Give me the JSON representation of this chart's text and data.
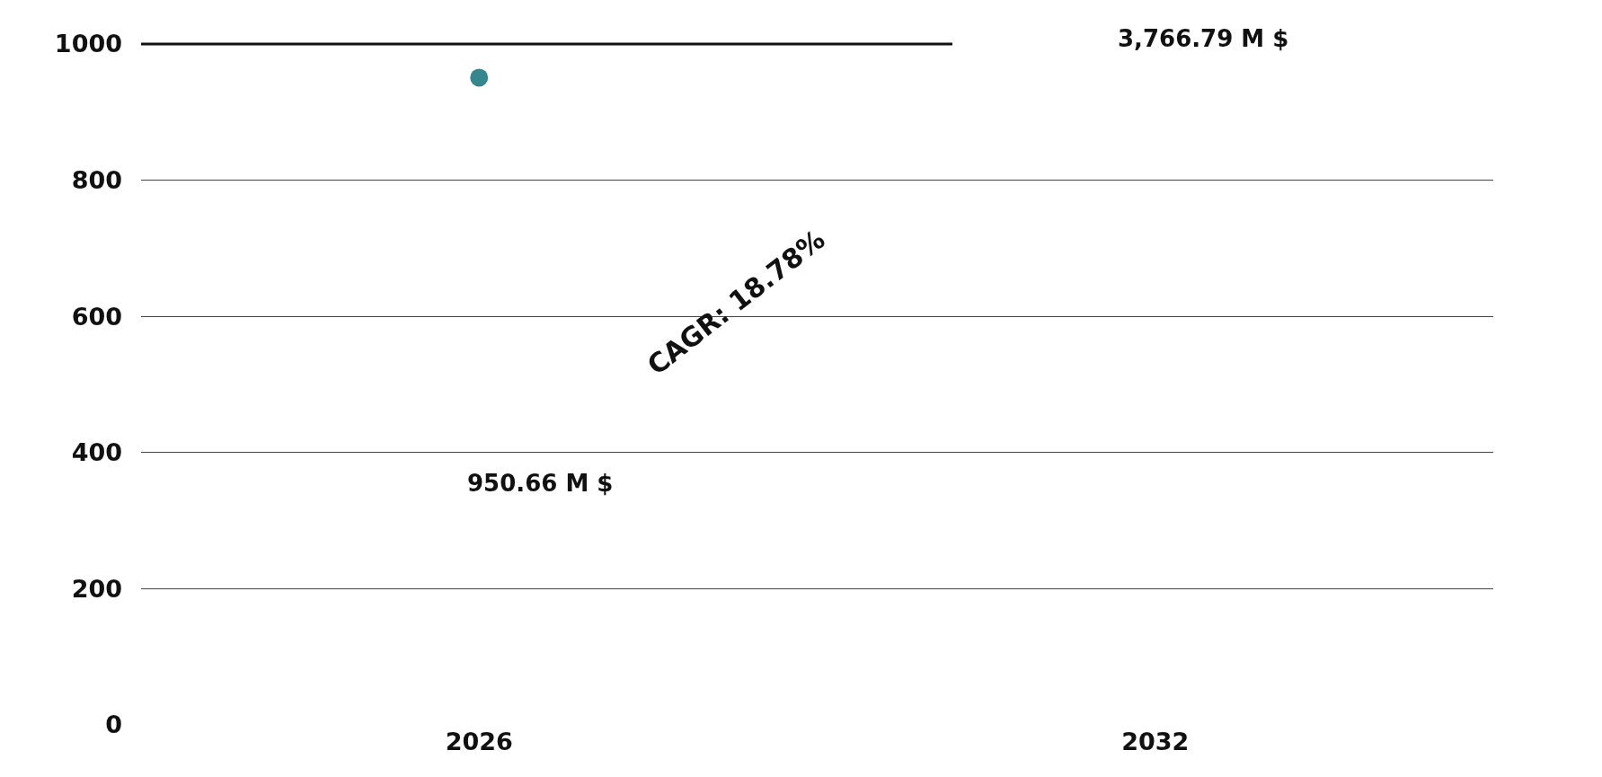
{
  "chart_data": {
    "type": "scatter",
    "categories": [
      "2026",
      "2032"
    ],
    "series": [
      {
        "color": "#35878f",
        "values": [
          950.66,
          null
        ]
      }
    ],
    "ylim": [
      0,
      1000
    ],
    "yticks": [
      0,
      200,
      400,
      600,
      800,
      1000
    ],
    "grid": "y",
    "marker": "circle",
    "annotations": [
      "950.66 M $",
      "CAGR: 18.78%",
      "3,766.79 M $"
    ]
  }
}
